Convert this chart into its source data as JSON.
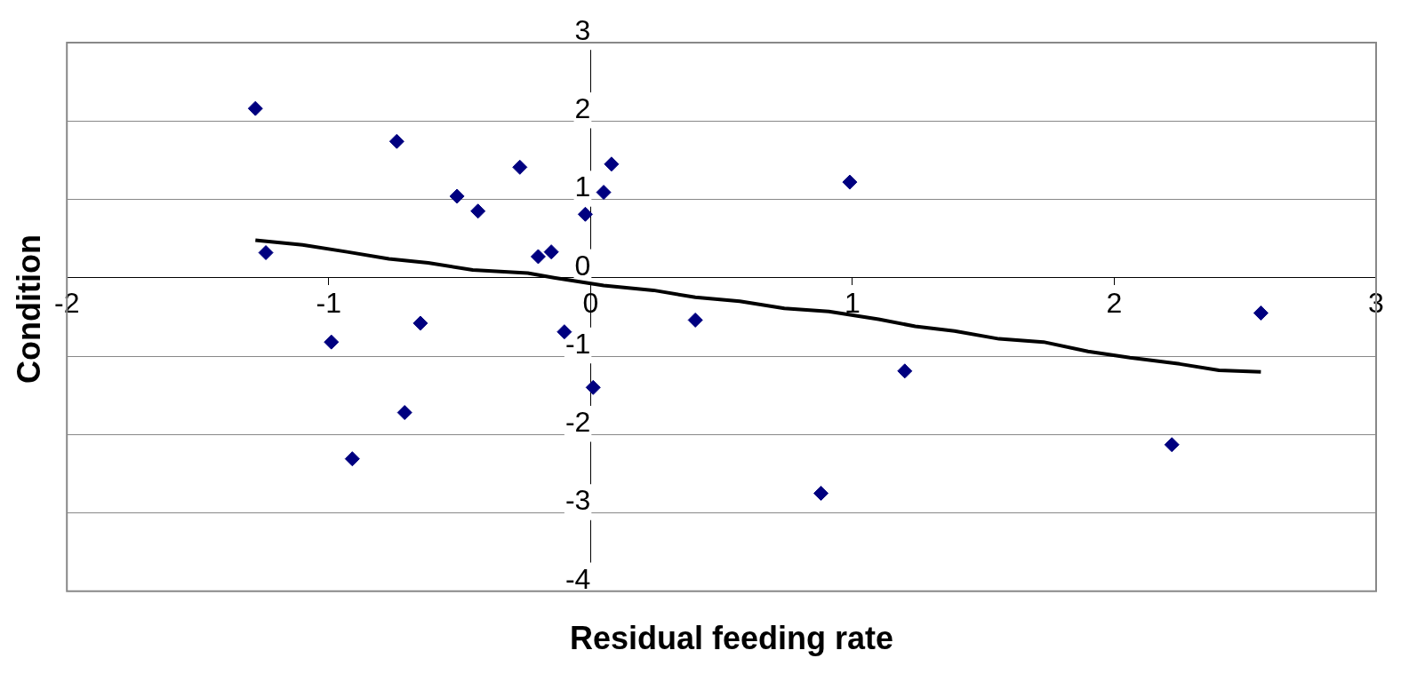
{
  "chart_data": {
    "type": "scatter",
    "xlabel": "Residual feeding rate",
    "ylabel": "Condition",
    "xlim": [
      -2,
      3
    ],
    "ylim": [
      -4,
      3
    ],
    "xticks": [
      -2,
      -1,
      0,
      1,
      2,
      3
    ],
    "yticks": [
      -4,
      -3,
      -2,
      -1,
      0,
      1,
      2,
      3
    ],
    "grid": "y",
    "marker": "diamond",
    "series": [
      {
        "color": "#000080",
        "x": [
          -1.28,
          -1.24,
          -0.74,
          -0.99,
          -0.91,
          -0.71,
          -0.65,
          -0.51,
          -0.43,
          -0.27,
          -0.2,
          -0.15,
          -0.1,
          -0.02,
          0.01,
          0.05,
          0.08,
          0.4,
          0.88,
          0.99,
          1.2,
          2.22,
          2.56
        ],
        "values": [
          2.16,
          0.32,
          1.74,
          -0.82,
          -2.31,
          -1.72,
          -0.58,
          1.04,
          0.85,
          1.41,
          0.27,
          0.33,
          -0.69,
          0.81,
          -1.4,
          1.09,
          1.45,
          -0.54,
          -2.75,
          1.22,
          -1.19,
          -2.13,
          -0.45
        ]
      },
      {
        "type": "line",
        "color": "#000000",
        "marker": "none",
        "x": [
          -1.28,
          -1.1,
          -0.93,
          -0.77,
          -0.62,
          -0.45,
          -0.24,
          -0.14,
          0.05,
          0.24,
          0.4,
          0.57,
          0.74,
          0.91,
          1.1,
          1.24,
          1.39,
          1.56,
          1.73,
          1.9,
          2.06,
          2.25,
          2.4,
          2.56
        ],
        "values": [
          0.48,
          0.42,
          0.33,
          0.24,
          0.19,
          0.1,
          0.06,
          0,
          -0.1,
          -0.16,
          -0.25,
          -0.3,
          -0.39,
          -0.43,
          -0.53,
          -0.62,
          -0.68,
          -0.78,
          -0.82,
          -0.94,
          -1.02,
          -1.1,
          -1.18,
          -1.2
        ]
      }
    ]
  }
}
